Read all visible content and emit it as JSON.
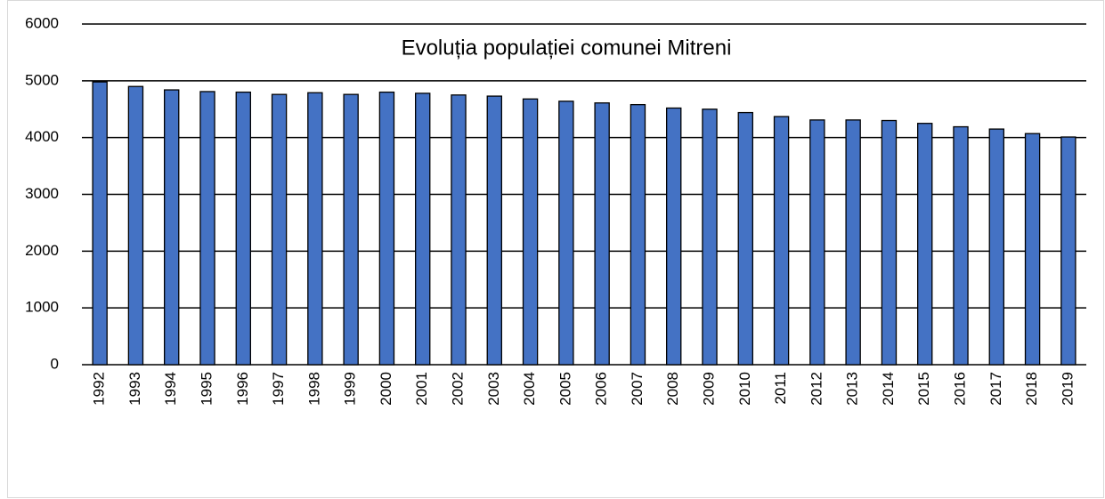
{
  "chart_data": {
    "type": "bar",
    "title": "Evoluția populației comunei Mitreni",
    "categories": [
      "1992",
      "1993",
      "1994",
      "1995",
      "1996",
      "1997",
      "1998",
      "1999",
      "2000",
      "2001",
      "2002",
      "2003",
      "2004",
      "2005",
      "2006",
      "2007",
      "2008",
      "2009",
      "2010",
      "2011",
      "2012",
      "2013",
      "2014",
      "2015",
      "2016",
      "2017",
      "2018",
      "2019"
    ],
    "values": [
      4980,
      4900,
      4840,
      4810,
      4800,
      4760,
      4790,
      4760,
      4800,
      4780,
      4750,
      4730,
      4680,
      4640,
      4610,
      4580,
      4520,
      4500,
      4440,
      4370,
      4310,
      4310,
      4300,
      4250,
      4190,
      4150,
      4070,
      4010
    ],
    "color": "#4472c4",
    "ylim": [
      0,
      6000
    ],
    "yticks": [
      0,
      1000,
      2000,
      3000,
      4000,
      5000,
      6000
    ],
    "grid": true
  }
}
